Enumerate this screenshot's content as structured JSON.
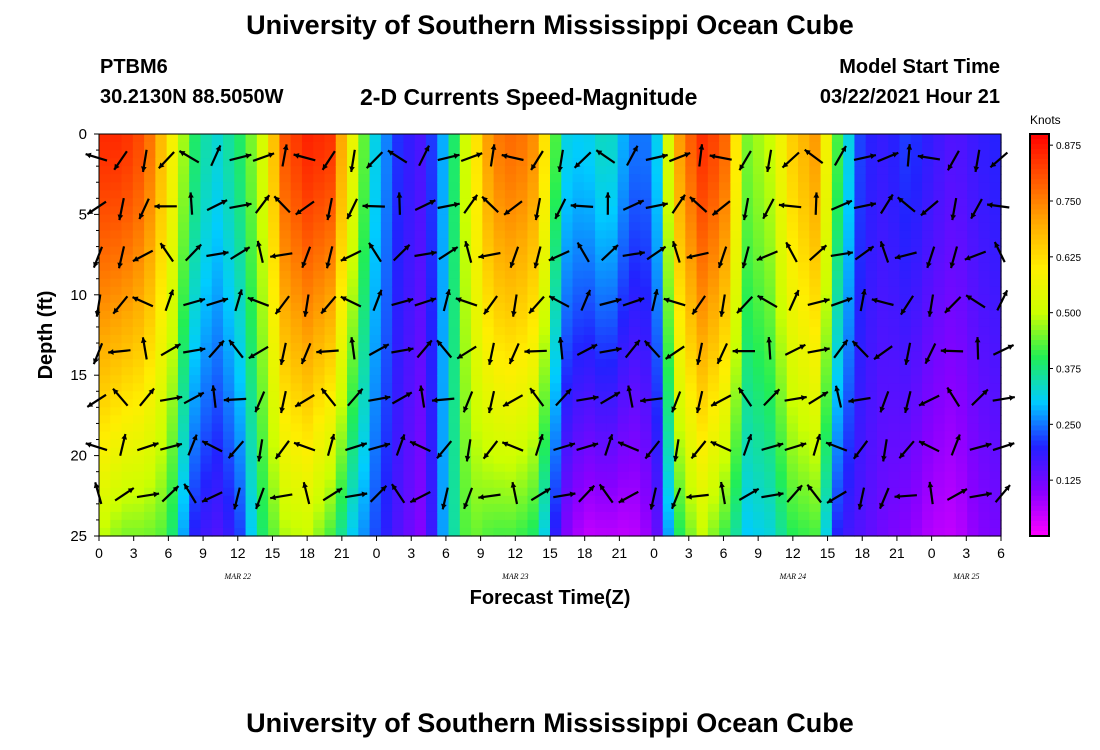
{
  "header": {
    "title": "University of Southern Mississippi Ocean Cube",
    "station": "PTBM6",
    "coords": "30.2130N 88.5050W",
    "subtitle": "2-D Currents Speed-Magnitude",
    "start_label": "Model Start Time",
    "start_time": "03/22/2021 Hour 21"
  },
  "footer": {
    "title": "University of Southern Mississippi Ocean Cube"
  },
  "chart_data": {
    "type": "heatmap",
    "xlabel": "Forecast Time(Z)",
    "ylabel": "Depth (ft)",
    "x_tick_labels": [
      "0",
      "3",
      "6",
      "9",
      "12",
      "15",
      "18",
      "21",
      "0",
      "3",
      "6",
      "9",
      "12",
      "15",
      "18",
      "21",
      "0",
      "3",
      "6",
      "9",
      "12",
      "15",
      "18",
      "21",
      "0",
      "3",
      "6"
    ],
    "x_range_hours": [
      0,
      78
    ],
    "date_labels": [
      {
        "label": "MAR 22",
        "hour": 12
      },
      {
        "label": "MAR 23",
        "hour": 36
      },
      {
        "label": "MAR 24",
        "hour": 60
      },
      {
        "label": "MAR 25",
        "hour": 75
      }
    ],
    "y_ticks": [
      0,
      5,
      10,
      15,
      20,
      25
    ],
    "ylim": [
      0,
      25
    ],
    "colorbar": {
      "unit_label": "Knots",
      "tick_labels": [
        "0.875",
        "0.750",
        "0.625",
        "0.500",
        "0.375",
        "0.250",
        "0.125"
      ],
      "tick_values": [
        0.875,
        0.75,
        0.625,
        0.5,
        0.375,
        0.25,
        0.125
      ],
      "range": [
        0,
        0.9
      ]
    },
    "colors": {
      "scale": [
        "#ff00ff",
        "#8800ff",
        "#2222ff",
        "#00ccff",
        "#22ee55",
        "#ccff00",
        "#ffee00",
        "#ffaa00",
        "#ff5500",
        "#ff0000"
      ]
    },
    "vectors_note": "current direction arrows drawn at 2-hour intervals"
  }
}
